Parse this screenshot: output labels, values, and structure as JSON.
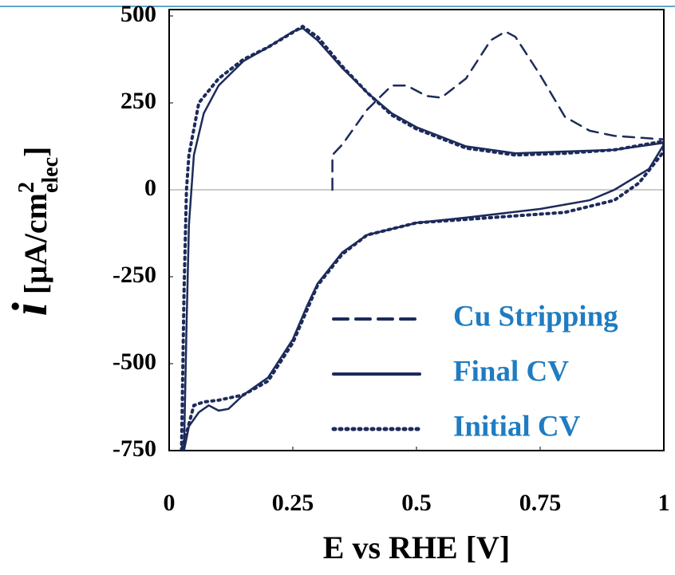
{
  "chart_data": {
    "type": "line",
    "x_label": "E vs RHE [V]",
    "y_label": {
      "symbol": "i",
      "unit": "[μA/cm",
      "sup": "2",
      "sub": "elec",
      "close": "]"
    },
    "xlim": [
      0,
      1
    ],
    "xticks": [
      0,
      0.25,
      0.5,
      0.75,
      1
    ],
    "ylim": [
      -750,
      500
    ],
    "yticks": [
      -750,
      -500,
      -250,
      0,
      250,
      500
    ],
    "zero_line": true,
    "legend_position": "lower right",
    "legend_color": "#1f7cc1",
    "series": [
      {
        "name": "Cu Stripping",
        "color": "#1c2b5a",
        "line_style": "dashed",
        "x": [
          0.33,
          0.33,
          0.35,
          0.4,
          0.45,
          0.48,
          0.52,
          0.55,
          0.6,
          0.65,
          0.68,
          0.7,
          0.75,
          0.8,
          0.85,
          0.9,
          1.0
        ],
        "values": [
          0,
          100,
          130,
          230,
          300,
          300,
          270,
          265,
          320,
          430,
          455,
          440,
          330,
          210,
          170,
          155,
          145
        ]
      },
      {
        "name": "Final CV",
        "color": "#1c2b5a",
        "line_style": "solid",
        "x": [
          0.03,
          0.035,
          0.04,
          0.045,
          0.05,
          0.07,
          0.1,
          0.15,
          0.2,
          0.25,
          0.27,
          0.3,
          0.35,
          0.4,
          0.45,
          0.5,
          0.6,
          0.7,
          0.8,
          0.9,
          1.0,
          1.0,
          0.97,
          0.9,
          0.85,
          0.75,
          0.6,
          0.5,
          0.4,
          0.35,
          0.3,
          0.28,
          0.25,
          0.2,
          0.15,
          0.12,
          0.1,
          0.08,
          0.06,
          0.04,
          0.03
        ],
        "values": [
          -750,
          -400,
          -100,
          0,
          100,
          220,
          300,
          370,
          410,
          455,
          465,
          430,
          350,
          280,
          220,
          180,
          125,
          105,
          110,
          115,
          135,
          130,
          60,
          0,
          -30,
          -55,
          -80,
          -95,
          -130,
          -180,
          -270,
          -330,
          -430,
          -540,
          -590,
          -630,
          -635,
          -620,
          -640,
          -680,
          -750
        ]
      },
      {
        "name": "Initial CV",
        "color": "#1c2b5a",
        "line_style": "dotted",
        "x": [
          0.025,
          0.03,
          0.035,
          0.04,
          0.06,
          0.1,
          0.15,
          0.2,
          0.27,
          0.3,
          0.35,
          0.4,
          0.45,
          0.5,
          0.6,
          0.7,
          0.8,
          0.9,
          1.0,
          1.0,
          0.95,
          0.9,
          0.8,
          0.7,
          0.6,
          0.5,
          0.4,
          0.35,
          0.3,
          0.25,
          0.2,
          0.15,
          0.1,
          0.07,
          0.05,
          0.035,
          0.025
        ],
        "values": [
          -750,
          -300,
          0,
          100,
          250,
          320,
          375,
          410,
          470,
          440,
          355,
          280,
          215,
          175,
          120,
          100,
          105,
          115,
          140,
          110,
          20,
          -30,
          -65,
          -75,
          -85,
          -95,
          -130,
          -185,
          -275,
          -440,
          -550,
          -590,
          -605,
          -610,
          -620,
          -700,
          -750
        ]
      }
    ]
  }
}
